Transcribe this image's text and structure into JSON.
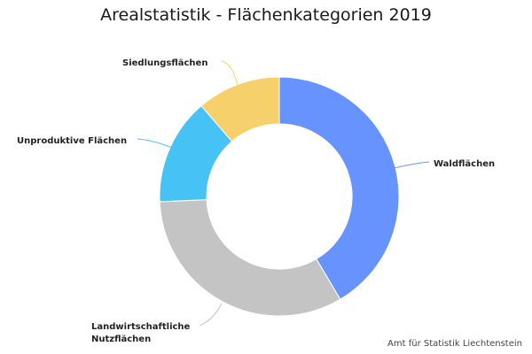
{
  "chart_data": {
    "type": "pie",
    "title": "Arealstatistik - Flächenkategorien 2019",
    "donut": true,
    "categories": [
      "Waldflächen",
      "Landwirtschaftliche Nutzflächen",
      "Unproduktive Flächen",
      "Siedlungsflächen"
    ],
    "values": [
      41.5,
      32.8,
      14.4,
      11.3
    ],
    "colors": [
      "#6693ff",
      "#c4c4c4",
      "#46c3f4",
      "#f6d06b"
    ]
  },
  "footer": {
    "source": "Amt für Statistik Liechtenstein"
  }
}
